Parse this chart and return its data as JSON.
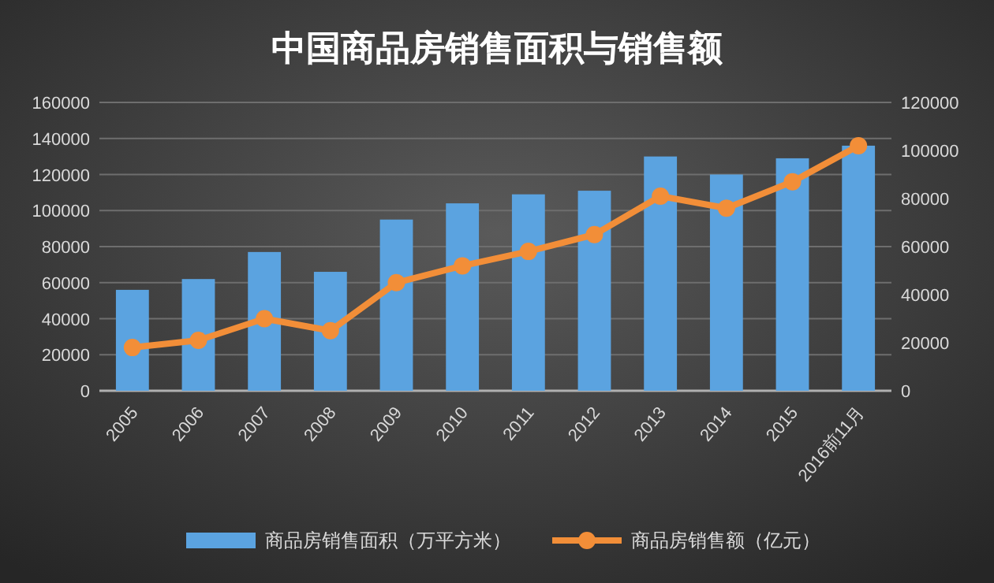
{
  "chart_data": {
    "type": "bar",
    "title": "中国商品房销售面积与销售额",
    "categories": [
      "2005",
      "2006",
      "2007",
      "2008",
      "2009",
      "2010",
      "2011",
      "2012",
      "2013",
      "2014",
      "2015",
      "2016前11月"
    ],
    "series": [
      {
        "name": "商品房销售面积（万平方米）",
        "color": "#5ba3e0",
        "values": [
          56000,
          62000,
          77000,
          66000,
          95000,
          104000,
          109000,
          111000,
          130000,
          120000,
          129000,
          136000
        ]
      },
      {
        "name": "商品房销售额（亿元）",
        "type": "line",
        "axis": "y2",
        "color": "#f28e38",
        "marker": "circle",
        "values": [
          18000,
          21000,
          30000,
          25000,
          45000,
          52000,
          58000,
          65000,
          81000,
          76000,
          87000,
          102000
        ]
      }
    ],
    "ylim": [
      0,
      160000
    ],
    "yticks": [
      0,
      20000,
      40000,
      60000,
      80000,
      100000,
      120000,
      140000,
      160000
    ],
    "y2lim": [
      0,
      120000
    ],
    "y2ticks": [
      0,
      20000,
      40000,
      60000,
      80000,
      100000,
      120000
    ],
    "grid": "y",
    "legend": "bottom"
  }
}
